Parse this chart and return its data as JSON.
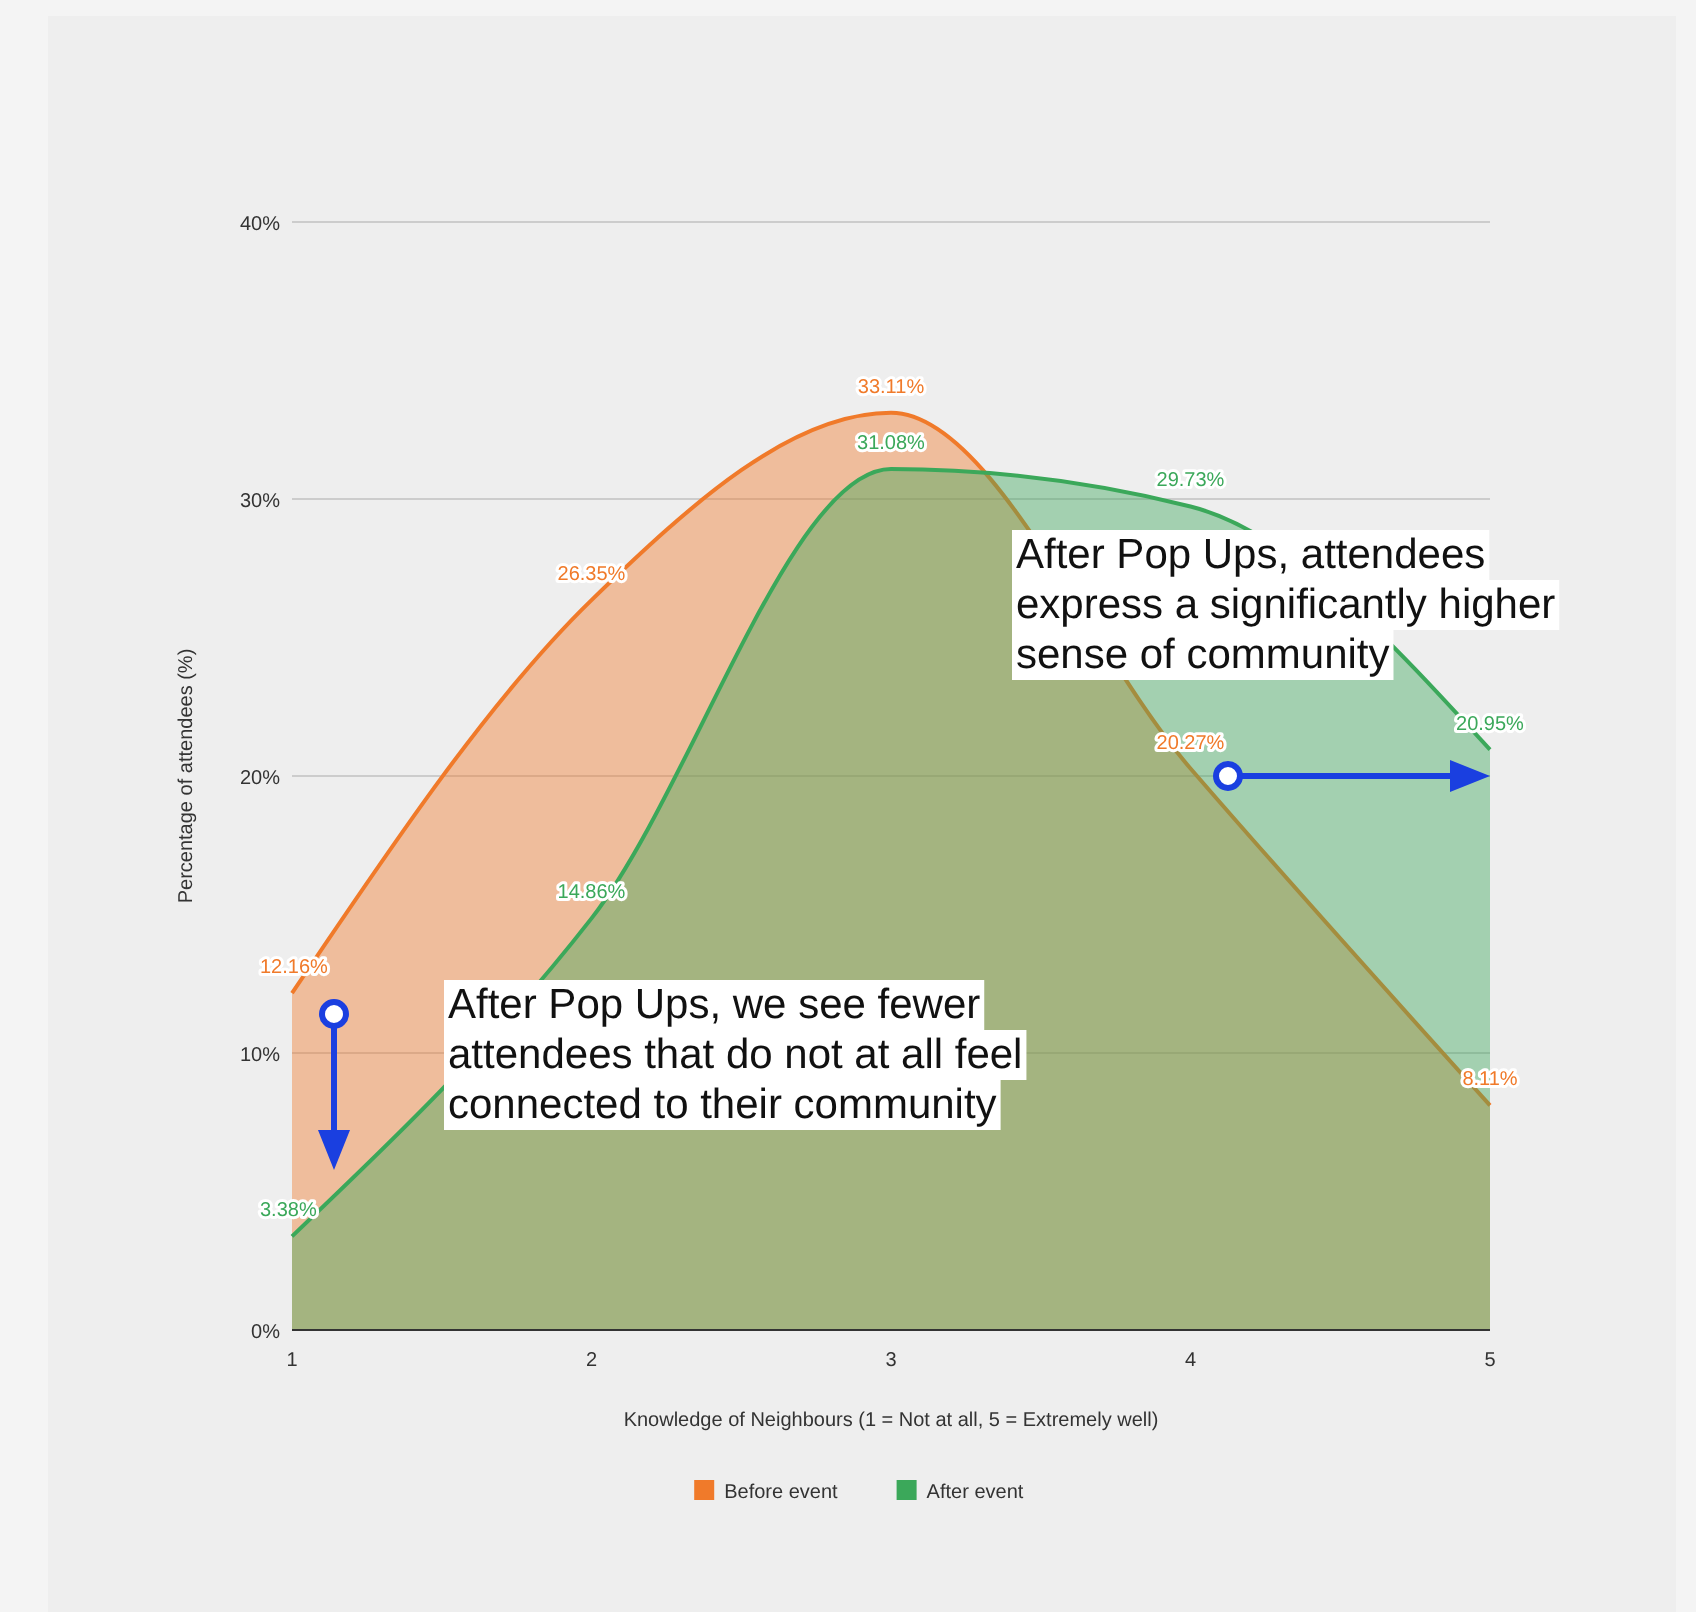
{
  "chart_data": {
    "type": "area",
    "xlabel": "Knowledge of Neighbours (1 = Not at all, 5 = Extremely well)",
    "ylabel": "Percentage of attendees (%)",
    "x": [
      1,
      2,
      3,
      4,
      5
    ],
    "xlim": [
      1,
      5
    ],
    "xticks": [
      1,
      2,
      3,
      4,
      5
    ],
    "ylim": [
      0,
      40
    ],
    "yticks": [
      {
        "value": 0,
        "label": "0%"
      },
      {
        "value": 10,
        "label": "10%"
      },
      {
        "value": 20,
        "label": "20%"
      },
      {
        "value": 30,
        "label": "30%"
      },
      {
        "value": 40,
        "label": "40%"
      }
    ],
    "grid": "y",
    "legend": "bottom",
    "marker": "none",
    "series": [
      {
        "name": "Before event",
        "color": "#f07a2a",
        "values": [
          12.16,
          26.35,
          33.11,
          20.27,
          8.11
        ],
        "value_labels": [
          "12.16%",
          "26.35%",
          "33.11%",
          "20.27%",
          "8.11%"
        ]
      },
      {
        "name": "After event",
        "color": "#3ba85a",
        "values": [
          3.38,
          14.86,
          31.08,
          29.73,
          20.95
        ],
        "value_labels": [
          "3.38%",
          "14.86%",
          "31.08%",
          "29.73%",
          "20.95%"
        ]
      }
    ],
    "annotations": [
      "After Pop Ups, we see fewer attendees that do not at all feel connected to their community",
      "After Pop Ups, attendees express a significantly higher sense of community"
    ]
  }
}
